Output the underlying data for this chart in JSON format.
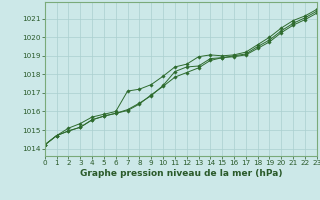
{
  "title": "Graphe pression niveau de la mer (hPa)",
  "x_labels": [
    "0",
    "1",
    "2",
    "3",
    "4",
    "5",
    "6",
    "7",
    "8",
    "9",
    "10",
    "11",
    "12",
    "13",
    "14",
    "15",
    "16",
    "17",
    "18",
    "19",
    "20",
    "21",
    "22",
    "23"
  ],
  "y_ticks": [
    1014,
    1015,
    1016,
    1017,
    1018,
    1019,
    1020,
    1021
  ],
  "xlim": [
    0,
    23
  ],
  "ylim": [
    1013.6,
    1021.9
  ],
  "line1": [
    1014.2,
    1014.7,
    1014.95,
    1015.15,
    1015.55,
    1015.75,
    1015.9,
    1016.1,
    1016.45,
    1016.85,
    1017.4,
    1018.15,
    1018.4,
    1018.45,
    1018.85,
    1018.9,
    1018.95,
    1019.05,
    1019.4,
    1019.75,
    1020.25,
    1020.65,
    1020.95,
    1021.3
  ],
  "line2": [
    1014.2,
    1014.7,
    1014.95,
    1015.15,
    1015.55,
    1015.75,
    1015.9,
    1016.05,
    1016.4,
    1016.9,
    1017.35,
    1017.85,
    1018.1,
    1018.35,
    1018.75,
    1018.9,
    1019.0,
    1019.1,
    1019.5,
    1019.85,
    1020.35,
    1020.75,
    1021.05,
    1021.4
  ],
  "line3": [
    1014.2,
    1014.7,
    1015.1,
    1015.35,
    1015.7,
    1015.85,
    1016.0,
    1017.1,
    1017.2,
    1017.45,
    1017.9,
    1018.4,
    1018.55,
    1018.95,
    1019.05,
    1019.0,
    1019.05,
    1019.2,
    1019.6,
    1020.0,
    1020.5,
    1020.9,
    1021.15,
    1021.5
  ],
  "line_color": "#2e6b2e",
  "marker": "D",
  "marker_size": 1.8,
  "bg_color": "#cce8e8",
  "grid_color": "#aacfcf",
  "font_color": "#2a5a2a",
  "title_fontsize": 6.5,
  "tick_fontsize": 5.2,
  "linewidth": 0.7
}
